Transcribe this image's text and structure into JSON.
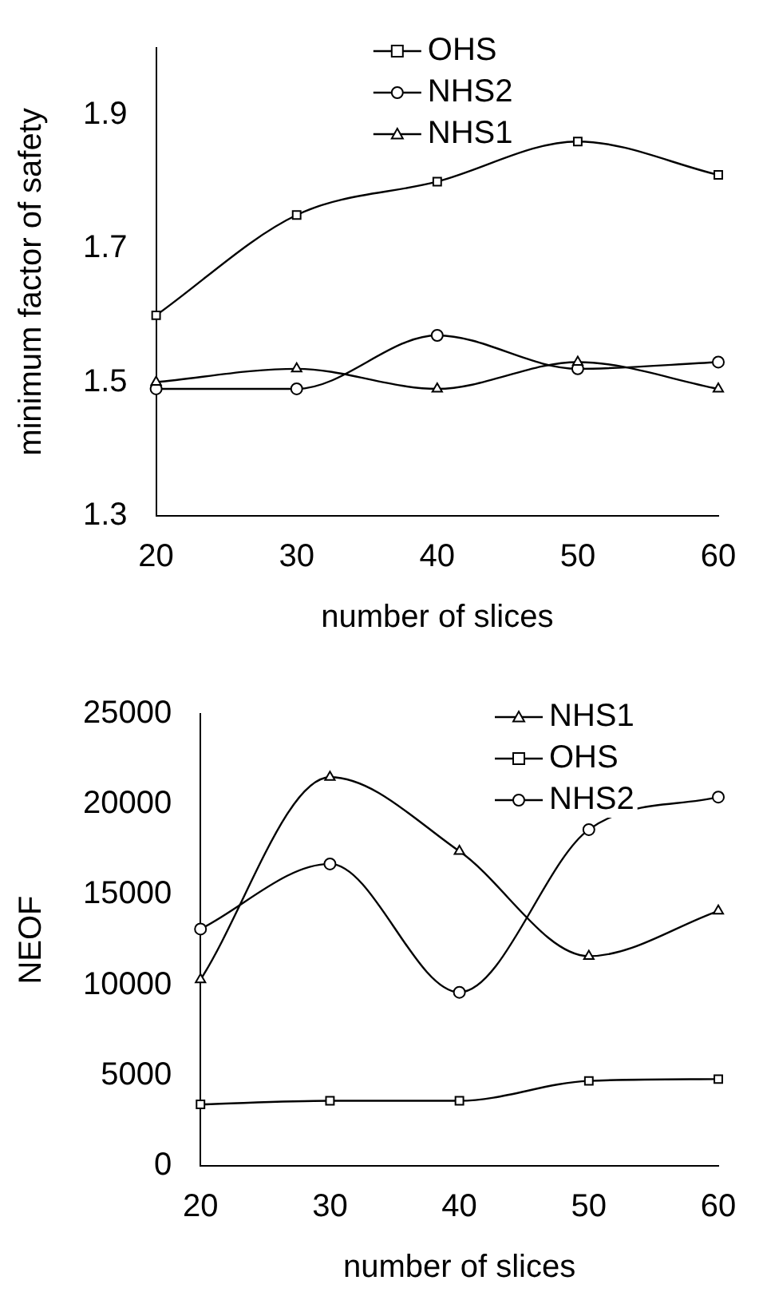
{
  "chart_data": [
    {
      "type": "line",
      "xlabel": "number of slices",
      "ylabel": "minimum factor of safety",
      "x": [
        20,
        30,
        40,
        50,
        60
      ],
      "xlim": [
        20,
        60
      ],
      "xticks": [
        20,
        30,
        40,
        50,
        60
      ],
      "ylim": [
        1.3,
        2.0
      ],
      "yticks": [
        1.3,
        1.5,
        1.7,
        1.9
      ],
      "grid": false,
      "legend": "top",
      "series": [
        {
          "name": "OHS",
          "color": "#000000",
          "marker": "square",
          "values": [
            1.6,
            1.75,
            1.8,
            1.86,
            1.81
          ]
        },
        {
          "name": "NHS2",
          "color": "#000000",
          "marker": "circle",
          "values": [
            1.49,
            1.49,
            1.57,
            1.52,
            1.53
          ]
        },
        {
          "name": "NHS1",
          "color": "#000000",
          "marker": "triangle",
          "values": [
            1.5,
            1.52,
            1.49,
            1.53,
            1.49
          ]
        }
      ]
    },
    {
      "type": "line",
      "xlabel": "number of slices",
      "ylabel": "NEOF",
      "x": [
        20,
        30,
        40,
        50,
        60
      ],
      "xlim": [
        20,
        60
      ],
      "xticks": [
        20,
        30,
        40,
        50,
        60
      ],
      "ylim": [
        0,
        25000
      ],
      "yticks": [
        0,
        5000,
        10000,
        15000,
        20000,
        25000
      ],
      "grid": false,
      "legend": "top right",
      "series": [
        {
          "name": "NHS1",
          "color": "#000000",
          "marker": "triangle",
          "values": [
            10300,
            21500,
            17400,
            11600,
            14100
          ]
        },
        {
          "name": "OHS",
          "color": "#000000",
          "marker": "square",
          "values": [
            3400,
            3600,
            3600,
            4700,
            4800
          ]
        },
        {
          "name": "NHS2",
          "color": "#000000",
          "marker": "circle",
          "values": [
            13100,
            16700,
            9600,
            18600,
            20400
          ]
        }
      ]
    }
  ]
}
